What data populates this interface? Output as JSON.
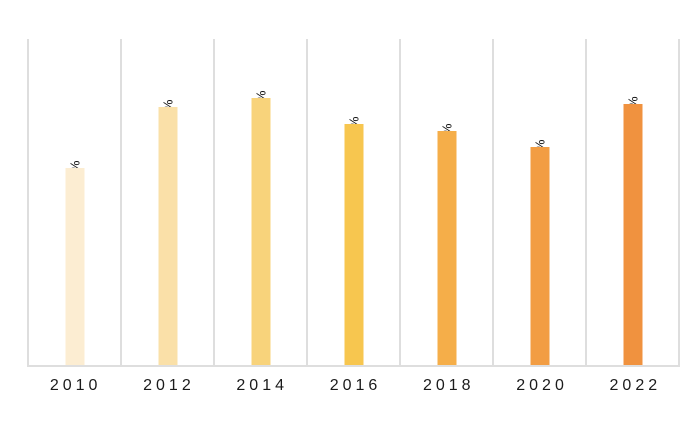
{
  "chart_data": {
    "type": "bar",
    "title": "",
    "xlabel": "",
    "ylabel": "",
    "categories": [
      "2010",
      "2012",
      "2014",
      "2016",
      "2018",
      "2020",
      "2022"
    ],
    "values": [
      60.5,
      79.5,
      82.3,
      74.2,
      71.9,
      67.0,
      80.2
    ],
    "value_labels": [
      "60,5%",
      "79,5%",
      "82,3%",
      "74,2%",
      "71,9%",
      "67,0%",
      "80,20%"
    ],
    "bar_colors": [
      "#FCEDD2",
      "#FAE0A8",
      "#F8D37B",
      "#F7C64F",
      "#F5AE49",
      "#F29D43",
      "#F0923F"
    ],
    "ylim": [
      0,
      100
    ],
    "legend": "none",
    "grid": "vertical column separators only",
    "separator_color": "#DEDEDE",
    "axis_line_color": "#DEDEDE",
    "value_label_color": "#111111",
    "tick_label_color": "#1B1B1B",
    "background_color": "#FFFFFF",
    "value_label_orientation": "rotated 90 degrees, reading bottom to top, at bar top"
  }
}
